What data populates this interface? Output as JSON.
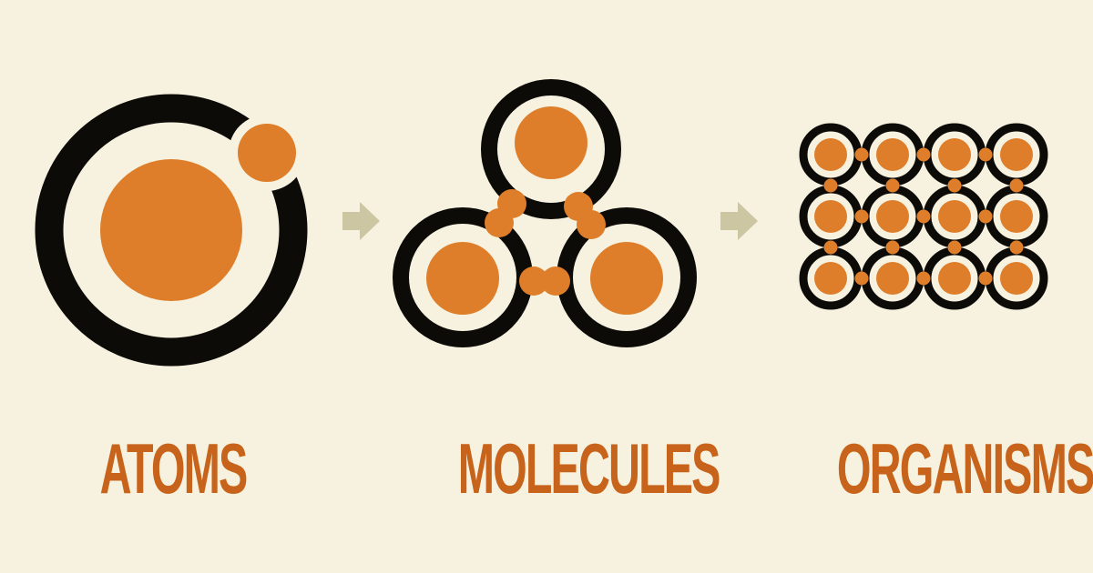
{
  "colors": {
    "background": "#f6f2df",
    "ring": "#0d0b08",
    "accent": "#de7e2a",
    "label": "#c7631a",
    "arrow": "#ccc6a3"
  },
  "stages": [
    {
      "key": "atoms",
      "label": "ATOMS",
      "icon": "atom-icon"
    },
    {
      "key": "molecules",
      "label": "MOLECULES",
      "icon": "molecule-icon"
    },
    {
      "key": "organisms",
      "label": "ORGANISMS",
      "icon": "organism-icon"
    }
  ],
  "arrows": [
    {
      "icon": "arrow-right-icon"
    },
    {
      "icon": "arrow-right-icon"
    }
  ]
}
